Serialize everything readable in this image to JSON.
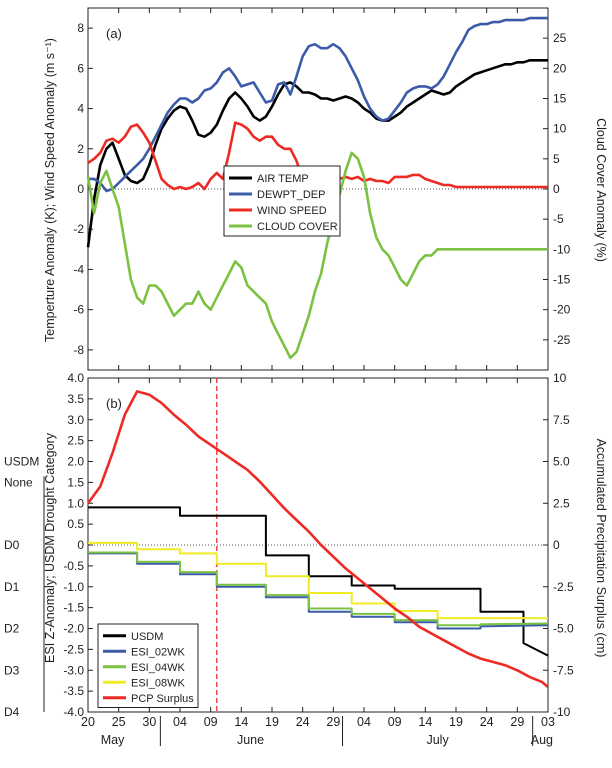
{
  "chart_data": [
    {
      "type": "line",
      "panel_label": "(a)",
      "ylabel": "Temperture Anomaly (K); Wind Speed Anomaly (m s⁻¹)",
      "y2label": "Cloud Cover Anomaly (%)",
      "ylim": [
        -9,
        9
      ],
      "y2lim": [
        -30,
        30
      ],
      "yticks": [
        8,
        6,
        4,
        2,
        0,
        -2,
        -4,
        -6,
        -8
      ],
      "y2ticks": [
        25,
        20,
        15,
        10,
        5,
        0,
        -5,
        -10,
        -15,
        -20,
        -25
      ],
      "x_unit": "day index from 20 May",
      "legend_position": "center",
      "zero_line": "dotted",
      "series": [
        {
          "name": "AIR TEMP",
          "color": "#000000",
          "axis": "left",
          "x": [
            0,
            1,
            2,
            3,
            4,
            5,
            6,
            7,
            8,
            9,
            10,
            11,
            12,
            13,
            14,
            15,
            16,
            17,
            18,
            19,
            20,
            21,
            22,
            23,
            24,
            25,
            26,
            27,
            28,
            29,
            30,
            31,
            32,
            33,
            34,
            35,
            36,
            37,
            38,
            39,
            40,
            41,
            42,
            43,
            44,
            45,
            46,
            47,
            48,
            49,
            50,
            51,
            52,
            53,
            54,
            55,
            56,
            57,
            58,
            59,
            60,
            61,
            62,
            63,
            64,
            65,
            66,
            67,
            68,
            69,
            70,
            71,
            72,
            73,
            74,
            75
          ],
          "values": [
            -2.9,
            -0.5,
            1.2,
            2.0,
            2.3,
            1.5,
            0.7,
            0.4,
            0.3,
            0.5,
            1.2,
            2.2,
            3.0,
            3.5,
            3.9,
            4.1,
            4.0,
            3.4,
            2.7,
            2.6,
            2.8,
            3.2,
            3.9,
            4.5,
            4.8,
            4.5,
            4.1,
            3.6,
            3.4,
            3.6,
            4.1,
            4.7,
            5.2,
            5.3,
            5.1,
            4.8,
            4.8,
            4.7,
            4.5,
            4.5,
            4.4,
            4.5,
            4.6,
            4.5,
            4.3,
            4.0,
            3.8,
            3.5,
            3.4,
            3.4,
            3.6,
            3.8,
            4.1,
            4.3,
            4.5,
            4.7,
            4.9,
            4.8,
            4.7,
            4.8,
            5.1,
            5.3,
            5.5,
            5.7,
            5.8,
            5.9,
            6.0,
            6.1,
            6.2,
            6.2,
            6.3,
            6.3,
            6.4,
            6.4,
            6.4,
            6.4
          ]
        },
        {
          "name": "DEWPT_DEP",
          "color": "#3b5ba9",
          "axis": "left",
          "x": [
            0,
            1,
            2,
            3,
            4,
            5,
            6,
            7,
            8,
            9,
            10,
            11,
            12,
            13,
            14,
            15,
            16,
            17,
            18,
            19,
            20,
            21,
            22,
            23,
            24,
            25,
            26,
            27,
            28,
            29,
            30,
            31,
            32,
            33,
            34,
            35,
            36,
            37,
            38,
            39,
            40,
            41,
            42,
            43,
            44,
            45,
            46,
            47,
            48,
            49,
            50,
            51,
            52,
            53,
            54,
            55,
            56,
            57,
            58,
            59,
            60,
            61,
            62,
            63,
            64,
            65,
            66,
            67,
            68,
            69,
            70,
            71,
            72,
            73,
            74,
            75
          ],
          "values": [
            0.5,
            0.5,
            0.3,
            -0.1,
            0.0,
            0.3,
            0.6,
            0.9,
            1.2,
            1.5,
            2.0,
            2.6,
            3.2,
            3.8,
            4.2,
            4.5,
            4.5,
            4.3,
            4.5,
            4.9,
            5.0,
            5.3,
            5.8,
            6.0,
            5.6,
            5.1,
            5.2,
            5.3,
            4.8,
            4.3,
            4.4,
            5.2,
            5.3,
            4.7,
            5.6,
            6.6,
            7.1,
            7.2,
            7.0,
            7.0,
            7.2,
            7.0,
            6.6,
            6.0,
            5.4,
            4.6,
            4.0,
            3.6,
            3.4,
            3.5,
            3.9,
            4.3,
            4.8,
            5.0,
            5.1,
            5.1,
            5.0,
            5.2,
            5.6,
            6.2,
            6.8,
            7.3,
            7.9,
            8.1,
            8.2,
            8.2,
            8.3,
            8.3,
            8.4,
            8.4,
            8.4,
            8.4,
            8.5,
            8.5,
            8.5,
            8.5
          ]
        },
        {
          "name": "WIND SPEED",
          "color": "#ee2a24",
          "axis": "left",
          "x": [
            0,
            1,
            2,
            3,
            4,
            5,
            6,
            7,
            8,
            9,
            10,
            11,
            12,
            13,
            14,
            15,
            16,
            17,
            18,
            19,
            20,
            21,
            22,
            23,
            24,
            25,
            26,
            27,
            28,
            29,
            30,
            31,
            32,
            33,
            34,
            35,
            36,
            37,
            38,
            39,
            40,
            41,
            42,
            43,
            44,
            45,
            46,
            47,
            48,
            49,
            50,
            51,
            52,
            53,
            54,
            55,
            56,
            57,
            58,
            59,
            60,
            61,
            62,
            63,
            64,
            65,
            66,
            67,
            68,
            69,
            70,
            71,
            72,
            73,
            74,
            75
          ],
          "values": [
            1.3,
            1.5,
            1.8,
            2.4,
            2.5,
            2.3,
            2.6,
            3.1,
            3.2,
            2.8,
            2.3,
            1.4,
            0.5,
            0.2,
            0.0,
            0.1,
            0.0,
            0.1,
            0.3,
            0.0,
            0.5,
            0.8,
            0.5,
            1.8,
            3.3,
            3.2,
            3.0,
            2.6,
            2.4,
            2.6,
            2.6,
            2.2,
            2.0,
            2.0,
            1.4,
            0.5,
            0.2,
            -0.1,
            0.0,
            0.2,
            0.5,
            0.5,
            0.6,
            0.5,
            0.6,
            0.4,
            0.5,
            0.4,
            0.4,
            0.3,
            0.6,
            0.6,
            0.6,
            0.7,
            0.7,
            0.5,
            0.4,
            0.3,
            0.2,
            0.2,
            0.1,
            0.1,
            0.1,
            0.1,
            0.1,
            0.1,
            0.1,
            0.1,
            0.1,
            0.1,
            0.1,
            0.1,
            0.1,
            0.1,
            0.1,
            0.1
          ]
        },
        {
          "name": "CLOUD COVER",
          "color": "#7cc242",
          "axis": "right",
          "x": [
            0,
            1,
            2,
            3,
            4,
            5,
            6,
            7,
            8,
            9,
            10,
            11,
            12,
            13,
            14,
            15,
            16,
            17,
            18,
            19,
            20,
            21,
            22,
            23,
            24,
            25,
            26,
            27,
            28,
            29,
            30,
            31,
            32,
            33,
            34,
            35,
            36,
            37,
            38,
            39,
            40,
            41,
            42,
            43,
            44,
            45,
            46,
            47,
            48,
            49,
            50,
            51,
            52,
            53,
            54,
            55,
            56,
            57,
            58,
            59,
            60,
            61,
            62,
            63,
            64,
            65,
            66,
            67,
            68,
            69,
            70,
            71,
            72,
            73,
            74,
            75
          ],
          "values": [
            2,
            -4,
            1,
            3,
            0,
            -3,
            -9,
            -15,
            -18,
            -19,
            -16,
            -16,
            -17,
            -19,
            -21,
            -20,
            -19,
            -19,
            -17,
            -19,
            -20,
            -18,
            -16,
            -14,
            -12,
            -13,
            -16,
            -17,
            -18,
            -19,
            -22,
            -24,
            -26,
            -28,
            -27,
            -24,
            -21,
            -17,
            -14,
            -9,
            -5,
            -1,
            3,
            6,
            5,
            2,
            -4,
            -8,
            -10,
            -11,
            -13,
            -15,
            -16,
            -14,
            -12,
            -11,
            -11,
            -10,
            -10,
            -10,
            -10,
            -10,
            -10,
            -10,
            -10,
            -10,
            -10,
            -10,
            -10,
            -10,
            -10,
            -10,
            -10,
            -10,
            -10,
            -10
          ]
        }
      ]
    },
    {
      "type": "line",
      "panel_label": "(b)",
      "ylabel": "ESI Z-Anomaly; USDM Drought Category",
      "y2label": "Accumulated Precipitation Surplus (cm)",
      "ylim": [
        -4.0,
        4.0
      ],
      "y2lim": [
        -10,
        10
      ],
      "yticks": [
        "4.0",
        "3.5",
        "3.0",
        "2.5",
        "2.0",
        "1.5",
        "1.0",
        "0.5",
        "0",
        "-0.5",
        "-1.0",
        "-1.5",
        "-2.0",
        "-2.5",
        "-3.0",
        "-3.5",
        "-4.0"
      ],
      "y2ticks": [
        "10",
        "7.5",
        "5.0",
        "2.5",
        "0",
        "-2.5",
        "-5.0",
        "-7.5",
        "-10"
      ],
      "usdm_categories": [
        "USDM",
        "None",
        "D0",
        "D1",
        "D2",
        "D3",
        "D4"
      ],
      "x_unit": "day index from 20 May",
      "vertical_marker_day": 21,
      "legend_position": "bottom-left",
      "zero_line": "dotted",
      "series": [
        {
          "name": "USDM",
          "color": "#000000",
          "axis": "left",
          "step": true,
          "x": [
            0,
            8,
            8,
            15,
            15,
            29,
            29,
            36,
            36,
            43,
            43,
            50,
            50,
            64,
            64,
            71,
            71,
            75
          ],
          "values": [
            0.9,
            0.9,
            0.9,
            0.9,
            0.7,
            0.7,
            -0.25,
            -0.25,
            -0.75,
            -0.75,
            -0.97,
            -0.97,
            -1.05,
            -1.05,
            -1.6,
            -1.6,
            -2.35,
            -2.65
          ]
        },
        {
          "name": "ESI_02WK",
          "color": "#3b5ba9",
          "axis": "left",
          "step": true,
          "x": [
            0,
            8,
            8,
            15,
            15,
            21,
            21,
            29,
            29,
            36,
            36,
            43,
            43,
            50,
            50,
            57,
            57,
            64,
            64,
            75
          ],
          "values": [
            -0.2,
            -0.2,
            -0.45,
            -0.45,
            -0.7,
            -0.7,
            -1.0,
            -1.0,
            -1.25,
            -1.25,
            -1.6,
            -1.6,
            -1.72,
            -1.72,
            -1.85,
            -1.85,
            -2.0,
            -2.0,
            -1.95,
            -1.92
          ]
        },
        {
          "name": "ESI_04WK",
          "color": "#7cc242",
          "axis": "left",
          "step": true,
          "x": [
            0,
            8,
            8,
            15,
            15,
            21,
            21,
            29,
            29,
            36,
            36,
            43,
            43,
            50,
            50,
            57,
            57,
            64,
            64,
            75
          ],
          "values": [
            -0.18,
            -0.18,
            -0.4,
            -0.4,
            -0.65,
            -0.65,
            -0.95,
            -0.95,
            -1.2,
            -1.2,
            -1.52,
            -1.52,
            -1.65,
            -1.65,
            -1.8,
            -1.8,
            -1.92,
            -1.92,
            -1.9,
            -1.88
          ]
        },
        {
          "name": "ESI_08WK",
          "color": "#f1eb25",
          "axis": "left",
          "step": true,
          "x": [
            0,
            8,
            8,
            15,
            15,
            21,
            21,
            29,
            29,
            36,
            36,
            43,
            43,
            50,
            50,
            57,
            57,
            64,
            64,
            75
          ],
          "values": [
            0.05,
            0.05,
            -0.1,
            -0.1,
            -0.2,
            -0.2,
            -0.45,
            -0.45,
            -0.75,
            -0.75,
            -1.15,
            -1.15,
            -1.4,
            -1.4,
            -1.58,
            -1.58,
            -1.75,
            -1.75,
            -1.75,
            -1.75
          ]
        },
        {
          "name": "PCP Surplus",
          "color": "#ee2a24",
          "axis": "right",
          "x": [
            0,
            2,
            4,
            6,
            8,
            10,
            12,
            14,
            16,
            18,
            20,
            22,
            24,
            26,
            28,
            30,
            32,
            34,
            36,
            38,
            40,
            42,
            44,
            46,
            48,
            50,
            52,
            54,
            56,
            58,
            60,
            62,
            64,
            66,
            68,
            70,
            72,
            74,
            75
          ],
          "values": [
            2.5,
            3.5,
            5.5,
            7.8,
            9.2,
            9.0,
            8.5,
            7.8,
            7.2,
            6.5,
            6.0,
            5.5,
            5.0,
            4.5,
            3.8,
            3.0,
            2.2,
            1.5,
            0.8,
            0.0,
            -0.7,
            -1.4,
            -2.0,
            -2.6,
            -3.2,
            -3.8,
            -4.3,
            -4.9,
            -5.3,
            -5.7,
            -6.1,
            -6.5,
            -6.8,
            -7.0,
            -7.2,
            -7.5,
            -7.9,
            -8.2,
            -8.5
          ]
        }
      ]
    }
  ],
  "x_axis": {
    "day_ticks": [
      "20",
      "25",
      "30",
      "04",
      "09",
      "14",
      "19",
      "24",
      "29",
      "04",
      "09",
      "14",
      "19",
      "24",
      "29",
      "03"
    ],
    "months": [
      "May",
      "June",
      "July",
      "Aug"
    ]
  }
}
